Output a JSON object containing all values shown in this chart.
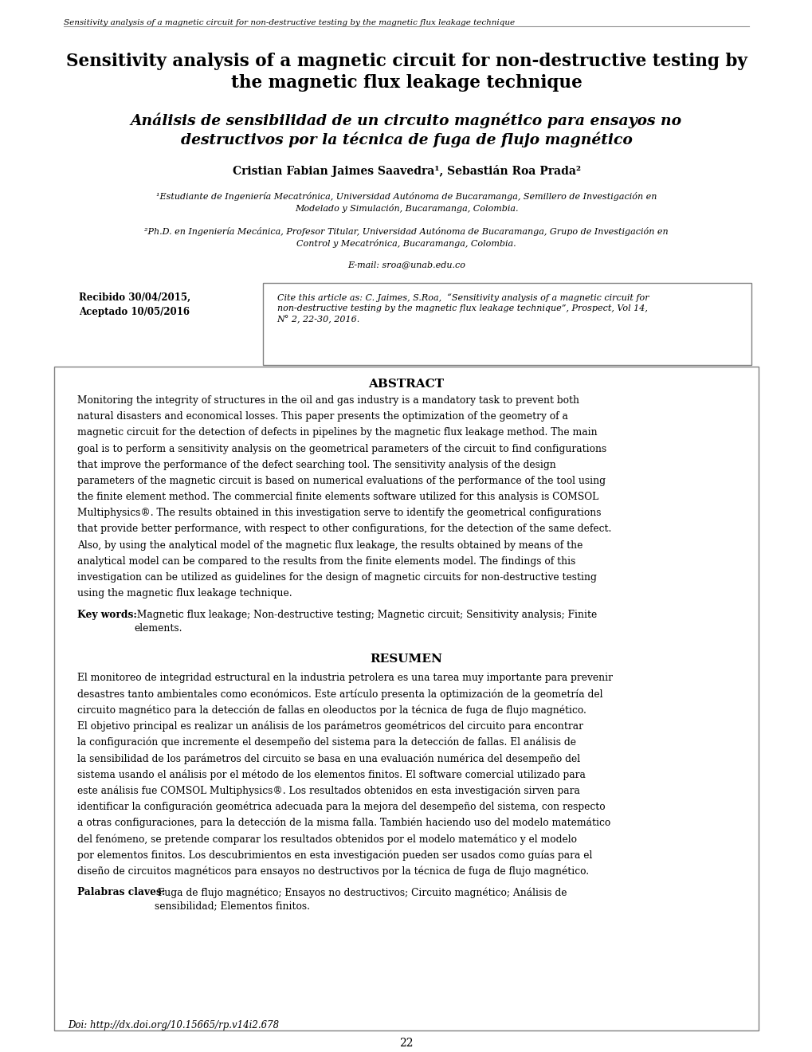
{
  "bg_color": "#ffffff",
  "page_width": 10.2,
  "page_height": 13.2,
  "header_italic": "Sensitivity analysis of a magnetic circuit for non-destructive testing by the magnetic flux leakage technique",
  "title_en": "Sensitivity analysis of a magnetic circuit for non-destructive testing by\nthe magnetic flux leakage technique",
  "title_es": "Análisis de sensibilidad de un circuito magnético para ensayos no\ndestructivos por la técnica de fuga de flujo magnético",
  "authors": "Cristian Fabian Jaimes Saavedra¹, Sebastián Roa Prada²",
  "affil1": "¹Estudiante de Ingeniería Mecatrónica, Universidad Autónoma de Bucaramanga, Semillero de Investigación en\nModelado y Simulación, Bucaramanga, Colombia.",
  "affil2": "²Ph.D. en Ingeniería Mecánica, Profesor Titular, Universidad Autónoma de Bucaramanga, Grupo de Investigación en\nControl y Mecatrónica, Bucaramanga, Colombia.",
  "email": "E-mail: sroa@unab.edu.co",
  "received": "Recibido 30/04/2015,\nAceptado 10/05/2016",
  "cite": "Cite this article as: C. Jaimes, S.Roa,  “Sensitivity analysis of a magnetic circuit for\nnon-destructive testing by the magnetic flux leakage technique”, Prospect, Vol 14,\nN° 2, 22-30, 2016.",
  "abstract_title": "ABSTRACT",
  "keywords_label": "Key words:",
  "keywords_text": " Magnetic flux leakage; Non-destructive testing; Magnetic circuit; Sensitivity analysis; Finite\nelements.",
  "resumen_title": "RESUMEN",
  "palabras_label": "Palabras claves:",
  "palabras_text": " Fuga de flujo magnético; Ensayos no destructivos; Circuito magnético; Análisis de\nsensibilidad; Elementos finitos.",
  "doi": "Doi: http://dx.doi.org/10.15665/rp.v14i2.678",
  "page_number": "22",
  "text_color": "#000000",
  "border_color": "#808080",
  "abstract_lines": [
    "Monitoring the integrity of structures in the oil and gas industry is a mandatory task to prevent both",
    "natural disasters and economical losses. This paper presents the optimization of the geometry of a",
    "magnetic circuit for the detection of defects in pipelines by the magnetic flux leakage method. The main",
    "goal is to perform a sensitivity analysis on the geometrical parameters of the circuit to find configurations",
    "that improve the performance of the defect searching tool. The sensitivity analysis of the design",
    "parameters of the magnetic circuit is based on numerical evaluations of the performance of the tool using",
    "the finite element method. The commercial finite elements software utilized for this analysis is COMSOL",
    "Multiphysics®. The results obtained in this investigation serve to identify the geometrical configurations",
    "that provide better performance, with respect to other configurations, for the detection of the same defect.",
    "Also, by using the analytical model of the magnetic flux leakage, the results obtained by means of the",
    "analytical model can be compared to the results from the finite elements model. The findings of this",
    "investigation can be utilized as guidelines for the design of magnetic circuits for non-destructive testing",
    "using the magnetic flux leakage technique."
  ],
  "resumen_lines": [
    "El monitoreo de integridad estructural en la industria petrolera es una tarea muy importante para prevenir",
    "desastres tanto ambientales como económicos. Este artículo presenta la optimización de la geometría del",
    "circuito magnético para la detección de fallas en oleoductos por la técnica de fuga de flujo magnético.",
    "El objetivo principal es realizar un análisis de los parámetros geométricos del circuito para encontrar",
    "la configuración que incremente el desempeño del sistema para la detección de fallas. El análisis de",
    "la sensibilidad de los parámetros del circuito se basa en una evaluación numérica del desempeño del",
    "sistema usando el análisis por el método de los elementos finitos. El software comercial utilizado para",
    "este análisis fue COMSOL Multiphysics®. Los resultados obtenidos en esta investigación sirven para",
    "identificar la configuración geométrica adecuada para la mejora del desempeño del sistema, con respecto",
    "a otras configuraciones, para la detección de la misma falla. También haciendo uso del modelo matemático",
    "del fenómeno, se pretende comparar los resultados obtenidos por el modelo matemático y el modelo",
    "por elementos finitos. Los descubrimientos en esta investigación pueden ser usados como guías para el",
    "diseño de circuitos magnéticos para ensayos no destructivos por la técnica de fuga de flujo magnético."
  ]
}
